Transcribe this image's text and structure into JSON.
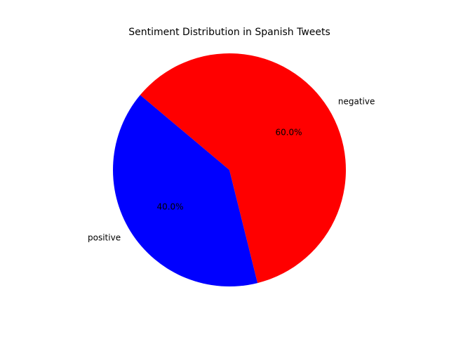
{
  "chart_data": {
    "type": "pie",
    "title": "Sentiment Distribution in Spanish Tweets",
    "slices": [
      {
        "label": "positive",
        "value": 40,
        "pct_label": "40.0%",
        "color": "#0000ff"
      },
      {
        "label": "negative",
        "value": 60,
        "pct_label": "60.0%",
        "color": "#ff0000"
      }
    ],
    "start_angle_deg": 140,
    "direction": "counterclockwise"
  }
}
